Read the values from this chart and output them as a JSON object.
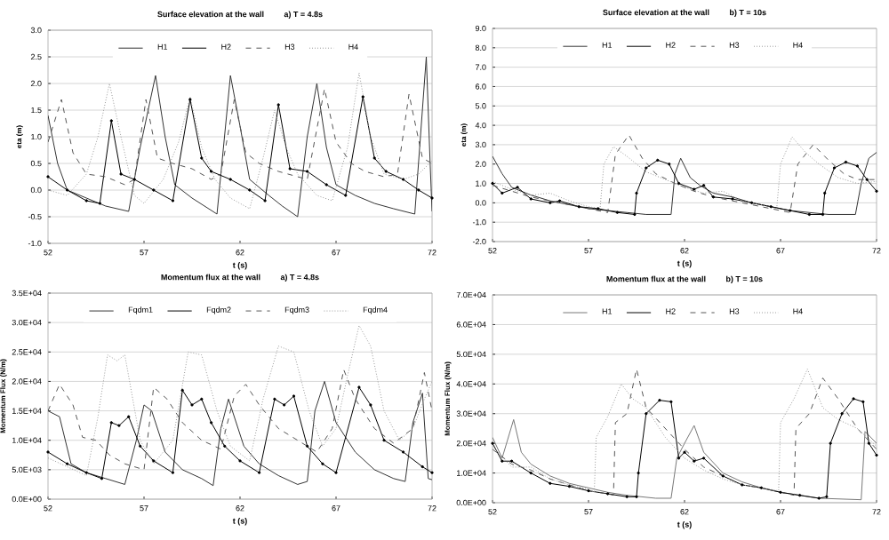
{
  "chart_data": [
    {
      "type": "line",
      "title": "Surface elevation at the wall",
      "subtitle": "a) T = 4.8s",
      "xlabel": "t (s)",
      "ylabel": "eta (m)",
      "xlim": [
        52,
        72
      ],
      "xticks": [
        52,
        57,
        62,
        67,
        72
      ],
      "ylim": [
        -1.0,
        3.0
      ],
      "yticks": [
        {
          "value": -1.0,
          "label": "-1.0"
        },
        {
          "value": -0.5,
          "label": "-0.5"
        },
        {
          "value": 0.0,
          "label": "0.0"
        },
        {
          "value": 0.5,
          "label": "0.5"
        },
        {
          "value": 1.0,
          "label": "1.0"
        },
        {
          "value": 1.5,
          "label": "1.5"
        },
        {
          "value": 2.0,
          "label": "2.0"
        },
        {
          "value": 2.5,
          "label": "2.5"
        },
        {
          "value": 3.0,
          "label": "3.0"
        }
      ],
      "grid": "y",
      "legend": "top",
      "series": [
        {
          "name": "H1",
          "color": "#333333",
          "line_style": "solid",
          "x": [
            52,
            52.5,
            53,
            54,
            55,
            56.2,
            56.8,
            57.6,
            58.1,
            58.6,
            59.5,
            60.8,
            61.5,
            62,
            62.5,
            63.5,
            64.2,
            65,
            65.5,
            66,
            66.5,
            67,
            68,
            69,
            70,
            71.1,
            71.7,
            71.9,
            72
          ],
          "values": [
            1.4,
            0.5,
            0,
            -0.15,
            -0.3,
            -0.4,
            0.8,
            2.15,
            1,
            0.1,
            -0.15,
            -0.45,
            2.15,
            1.2,
            0.2,
            -0.1,
            -0.3,
            -0.5,
            1,
            2,
            0.8,
            0.1,
            -0.1,
            -0.25,
            -0.35,
            -0.45,
            2.5,
            0.5,
            -0.4
          ]
        },
        {
          "name": "H2",
          "color": "#000000",
          "line_style": "solid",
          "marker": "circle",
          "x": [
            52,
            53,
            54,
            54.7,
            55.3,
            55.8,
            56.5,
            57.5,
            58.5,
            59.4,
            60,
            60.5,
            61.5,
            62.5,
            63.3,
            64,
            64.6,
            65.5,
            66.5,
            67.5,
            68.4,
            69,
            69.6,
            70.5,
            71.3,
            72
          ],
          "values": [
            0.25,
            0,
            -0.2,
            -0.25,
            1.3,
            0.3,
            0.2,
            0,
            -0.2,
            1.7,
            0.6,
            0.35,
            0.2,
            0,
            -0.2,
            1.6,
            0.4,
            0.35,
            0.1,
            -0.1,
            1.75,
            0.6,
            0.35,
            0.2,
            0,
            -0.15
          ]
        },
        {
          "name": "H3",
          "color": "#555555",
          "line_style": "dashed",
          "x": [
            52,
            52.7,
            53.3,
            54,
            55,
            56,
            56.5,
            57.1,
            57.7,
            58.5,
            59.5,
            60.5,
            61,
            61.7,
            62.3,
            63,
            64,
            65.5,
            66.4,
            67,
            67.8,
            68.5,
            69.5,
            70.2,
            70.8,
            71.5,
            72
          ],
          "values": [
            0.9,
            1.7,
            0.7,
            0.3,
            0.25,
            0.1,
            0.2,
            1.7,
            0.6,
            0.5,
            0.4,
            0.2,
            0.3,
            1.7,
            0.7,
            0.5,
            0.35,
            0.2,
            1.9,
            0.9,
            0.5,
            0.35,
            0.25,
            0.3,
            1.8,
            0.6,
            0.5
          ]
        },
        {
          "name": "H4",
          "color": "#999999",
          "line_style": "dotted",
          "x": [
            52,
            53,
            54,
            54.6,
            55.2,
            55.8,
            56.5,
            57,
            58,
            58.8,
            59.4,
            60,
            60.7,
            61.5,
            62.5,
            63.2,
            63.8,
            64.4,
            65,
            66,
            66.8,
            67.6,
            68.2,
            68.8,
            69.5,
            70.5,
            71.3,
            72
          ],
          "values": [
            0,
            -0.1,
            0.3,
            1,
            2,
            1,
            -0.1,
            -0.25,
            0.2,
            0.9,
            1.75,
            0.8,
            0.2,
            -0.15,
            -0.35,
            0.6,
            1.5,
            0.8,
            0.3,
            -0.1,
            -0.2,
            0.8,
            2.2,
            1,
            0.3,
            0.2,
            0.3,
            0.55
          ]
        }
      ]
    },
    {
      "type": "line",
      "title": "Surface elevation at the wall",
      "subtitle": "b) T = 10s",
      "xlabel": "t (s)",
      "ylabel": "eta (m)",
      "xlim": [
        52,
        72
      ],
      "xticks": [
        52,
        57,
        62,
        67,
        72
      ],
      "ylim": [
        -2.0,
        9.0
      ],
      "yticks": [
        {
          "value": -2.0,
          "label": "-2.0"
        },
        {
          "value": -1.0,
          "label": "-1.0"
        },
        {
          "value": 0.0,
          "label": "0.0"
        },
        {
          "value": 1.0,
          "label": "1.0"
        },
        {
          "value": 2.0,
          "label": "2.0"
        },
        {
          "value": 3.0,
          "label": "3.0"
        },
        {
          "value": 4.0,
          "label": "4.0"
        },
        {
          "value": 5.0,
          "label": "5.0"
        },
        {
          "value": 6.0,
          "label": "6.0"
        },
        {
          "value": 7.0,
          "label": "7.0"
        },
        {
          "value": 8.0,
          "label": "8.0"
        },
        {
          "value": 9.0,
          "label": "9.0"
        }
      ],
      "grid": "y",
      "legend": "top",
      "series": [
        {
          "name": "H1",
          "color": "#333333",
          "line_style": "solid",
          "x": [
            52,
            52.5,
            53,
            54,
            55,
            56,
            57,
            58,
            59,
            60,
            61.3,
            61.5,
            61.8,
            62.3,
            62.8,
            63.5,
            64.5,
            65.5,
            66.5,
            67.5,
            68.5,
            69.5,
            70.9,
            71.2,
            71.6,
            72
          ],
          "values": [
            2.4,
            1.5,
            0.8,
            0.4,
            0.1,
            -0.1,
            -0.3,
            -0.4,
            -0.5,
            -0.6,
            -0.6,
            1.5,
            2.3,
            1.3,
            0.9,
            0.5,
            0.3,
            0,
            -0.2,
            -0.4,
            -0.5,
            -0.6,
            -0.6,
            1,
            2.3,
            2.6
          ]
        },
        {
          "name": "H2",
          "color": "#000000",
          "line_style": "solid",
          "marker": "circle",
          "x": [
            52,
            52.5,
            53.3,
            54,
            55,
            55.5,
            56.5,
            57.5,
            58.5,
            59.4,
            59.5,
            60,
            60.6,
            61.2,
            61.7,
            62.5,
            63,
            63.5,
            64.5,
            65.5,
            66.5,
            67.5,
            68.5,
            69.2,
            69.3,
            69.8,
            70.4,
            71,
            71.5,
            72
          ],
          "values": [
            1,
            0.5,
            0.8,
            0.2,
            0,
            0.1,
            -0.2,
            -0.3,
            -0.5,
            -0.6,
            0.5,
            1.8,
            2.2,
            2,
            1,
            0.7,
            0.9,
            0.3,
            0.2,
            0,
            -0.2,
            -0.4,
            -0.6,
            -0.6,
            0.5,
            1.8,
            2.1,
            1.9,
            1.2,
            0.6
          ]
        },
        {
          "name": "H3",
          "color": "#555555",
          "line_style": "dashed",
          "x": [
            52,
            53,
            54,
            55,
            56,
            57,
            58,
            58.4,
            59.1,
            59.8,
            60.5,
            61.5,
            62.5,
            63.5,
            64.5,
            65.5,
            66.5,
            67.5,
            67.9,
            68.7,
            69.5,
            70.3,
            71,
            72
          ],
          "values": [
            0.9,
            0.6,
            0.3,
            0.1,
            -0.1,
            -0.3,
            -0.5,
            2.5,
            3.5,
            2.3,
            1.5,
            1,
            0.6,
            0.3,
            0.1,
            -0.1,
            -0.3,
            -0.5,
            2,
            3,
            2.2,
            1.5,
            1.2,
            1.2
          ]
        },
        {
          "name": "H4",
          "color": "#999999",
          "line_style": "dotted",
          "x": [
            52,
            53,
            54,
            55,
            56,
            57,
            57.6,
            57.8,
            58.3,
            59,
            60,
            61,
            62,
            63,
            64,
            65,
            66,
            66.8,
            67,
            67.6,
            68.3,
            69,
            70,
            71,
            72
          ],
          "values": [
            1.1,
            0.7,
            0.4,
            0.5,
            0.1,
            -0.2,
            -0.3,
            2,
            2.9,
            2.4,
            1.6,
            1.2,
            0.8,
            0.5,
            0.6,
            0.1,
            -0.1,
            -0.3,
            2,
            3.4,
            2.6,
            2,
            1.3,
            1,
            1.1
          ]
        }
      ]
    },
    {
      "type": "line",
      "title": "Momentum flux at the wall",
      "subtitle": "a) T = 4.8s",
      "xlabel": "t (s)",
      "ylabel": "Momentum Flux (N/m)",
      "xlim": [
        52,
        72
      ],
      "xticks": [
        52,
        57,
        62,
        67,
        72
      ],
      "ylim": [
        0,
        35000
      ],
      "yticks": [
        {
          "value": 0,
          "label": "0.0E+00"
        },
        {
          "value": 5000,
          "label": "5.0E+03"
        },
        {
          "value": 10000,
          "label": "1.0E+04"
        },
        {
          "value": 15000,
          "label": "1.5E+04"
        },
        {
          "value": 20000,
          "label": "2.0E+04"
        },
        {
          "value": 25000,
          "label": "2.5E+04"
        },
        {
          "value": 30000,
          "label": "3.0E+04"
        },
        {
          "value": 35000,
          "label": "3.5E+04"
        }
      ],
      "grid": "y",
      "legend": "top",
      "series": [
        {
          "name": "Fqdm1",
          "color": "#333333",
          "line_style": "solid",
          "x": [
            52,
            52.6,
            53.2,
            54,
            55,
            56,
            56.6,
            57,
            57.4,
            58.1,
            59,
            60,
            60.6,
            61,
            61.4,
            62.2,
            63,
            64,
            65,
            65.5,
            65.9,
            66.4,
            67,
            68,
            69,
            70,
            70.6,
            71,
            71.5,
            71.8,
            72
          ],
          "values": [
            15000,
            14000,
            6000,
            4500,
            3500,
            2500,
            10000,
            16000,
            15000,
            8000,
            5000,
            3500,
            2300,
            12000,
            17000,
            9000,
            6000,
            4000,
            2500,
            3000,
            15000,
            20000,
            13000,
            8000,
            5000,
            3500,
            3000,
            13000,
            18000,
            3500,
            3300
          ]
        },
        {
          "name": "Fqdm2",
          "color": "#000000",
          "line_style": "solid",
          "marker": "circle",
          "x": [
            52,
            53,
            54,
            54.8,
            55.3,
            55.7,
            56.2,
            56.8,
            57.5,
            58.5,
            59,
            59.5,
            60,
            60.5,
            61.2,
            62,
            63,
            63.8,
            64.3,
            64.8,
            65.5,
            66.3,
            67,
            68.2,
            68.8,
            69.5,
            70.5,
            71.5,
            72
          ],
          "values": [
            8000,
            6000,
            4500,
            3500,
            13000,
            12500,
            14000,
            9000,
            6500,
            4500,
            18500,
            16000,
            17000,
            13000,
            9000,
            6500,
            4500,
            17000,
            16000,
            17500,
            9000,
            6000,
            4500,
            19000,
            16000,
            10000,
            8000,
            5500,
            4500
          ]
        },
        {
          "name": "Fqdm3",
          "color": "#555555",
          "line_style": "dashed",
          "x": [
            52,
            52.6,
            53.3,
            53.8,
            54.5,
            55.2,
            56,
            57,
            57.5,
            58.2,
            59,
            60,
            61,
            61.7,
            62.3,
            63,
            64,
            65,
            66,
            66.8,
            67.4,
            68,
            69,
            70,
            71,
            71.6,
            72
          ],
          "values": [
            15000,
            19500,
            16000,
            10500,
            10000,
            7500,
            6000,
            5000,
            19000,
            17000,
            13000,
            10000,
            8500,
            17500,
            19500,
            16000,
            12000,
            10000,
            8000,
            12000,
            22000,
            17000,
            12000,
            9500,
            12000,
            21500,
            15000
          ]
        },
        {
          "name": "Fqdm4",
          "color": "#999999",
          "line_style": "dotted",
          "x": [
            52,
            53,
            54,
            54.6,
            55.1,
            55.6,
            56,
            56.8,
            57.5,
            58.5,
            59.3,
            60,
            60.8,
            61.5,
            62.5,
            63.2,
            64,
            64.8,
            65.6,
            66.3,
            67,
            67.6,
            68.2,
            68.8,
            69.5,
            70.3,
            71,
            71.6,
            72
          ],
          "values": [
            7000,
            5500,
            4000,
            14000,
            24500,
            23500,
            24500,
            10000,
            6000,
            10000,
            25000,
            24500,
            15000,
            9000,
            6500,
            17000,
            26000,
            25000,
            15000,
            9000,
            12000,
            21000,
            29500,
            26000,
            15000,
            10000,
            12000,
            17000,
            20000
          ]
        }
      ]
    },
    {
      "type": "line",
      "title": "Momentum flux at the wall",
      "subtitle": "b) T = 10s",
      "xlabel": "t (s)",
      "ylabel": "Momentum Flux (N/m)",
      "xlim": [
        52,
        72
      ],
      "xticks": [
        52,
        57,
        62,
        67,
        72
      ],
      "ylim": [
        0,
        70000
      ],
      "yticks": [
        {
          "value": 0,
          "label": "0.0E+00"
        },
        {
          "value": 10000,
          "label": "1.0E+04"
        },
        {
          "value": 20000,
          "label": "2.0E+04"
        },
        {
          "value": 30000,
          "label": "3.0E+04"
        },
        {
          "value": 40000,
          "label": "4.0E+04"
        },
        {
          "value": 50000,
          "label": "5.0E+04"
        },
        {
          "value": 60000,
          "label": "6.0E+04"
        },
        {
          "value": 70000,
          "label": "7.0E+04"
        }
      ],
      "grid": "y",
      "legend": "top",
      "series": [
        {
          "name": "H1",
          "color": "#777777",
          "line_style": "solid",
          "x": [
            52,
            52.5,
            53.1,
            53.5,
            54,
            55,
            56,
            57,
            58,
            59,
            60.5,
            61.3,
            61.6,
            62,
            62.5,
            63,
            64,
            65,
            66,
            67,
            68,
            69,
            71.2,
            71.4,
            72
          ],
          "values": [
            22000,
            15000,
            28000,
            17000,
            13000,
            9000,
            6500,
            5000,
            3500,
            2500,
            1500,
            1500,
            15000,
            20000,
            26000,
            17000,
            10000,
            7000,
            5000,
            3500,
            2500,
            1500,
            1000,
            24000,
            20000
          ]
        },
        {
          "name": "H2",
          "color": "#000000",
          "line_style": "solid",
          "marker": "circle",
          "x": [
            52,
            52.5,
            53,
            54,
            55,
            56,
            57,
            58,
            59,
            59.5,
            59.6,
            60,
            60.7,
            61.3,
            61.7,
            62,
            62.5,
            63,
            64,
            65,
            66,
            67,
            68,
            69,
            69.4,
            69.6,
            70.2,
            70.8,
            71.3,
            71.6,
            72
          ],
          "values": [
            20000,
            14000,
            14000,
            10000,
            6500,
            5500,
            4000,
            3000,
            2000,
            2000,
            10000,
            30000,
            34500,
            34000,
            15000,
            17000,
            14000,
            15000,
            9000,
            6000,
            5000,
            3500,
            2500,
            1500,
            2000,
            20000,
            30000,
            35000,
            34000,
            20000,
            16000
          ]
        },
        {
          "name": "H3",
          "color": "#555555",
          "line_style": "dashed",
          "x": [
            52,
            53,
            54,
            55,
            56,
            57,
            58,
            58.3,
            58.4,
            59,
            59.5,
            60,
            61,
            62,
            63,
            64,
            65,
            66,
            67,
            67.7,
            67.8,
            68.5,
            69.2,
            70,
            71,
            72
          ],
          "values": [
            18000,
            13000,
            11000,
            8000,
            6000,
            4000,
            3000,
            2500,
            27000,
            30000,
            45000,
            32000,
            25000,
            18000,
            12000,
            9000,
            6000,
            5000,
            3500,
            2500,
            25000,
            30000,
            42000,
            35000,
            25000,
            18000
          ]
        },
        {
          "name": "H4",
          "color": "#999999",
          "line_style": "dotted",
          "x": [
            52,
            53,
            54,
            55,
            56,
            57,
            57.3,
            57.4,
            58,
            58.7,
            59.3,
            60,
            61,
            62,
            63,
            64,
            65,
            66,
            66.9,
            67,
            67.7,
            68.4,
            69.2,
            70,
            71,
            72
          ],
          "values": [
            19000,
            12000,
            12000,
            8000,
            6000,
            4500,
            3500,
            22000,
            29000,
            40000,
            35000,
            32000,
            22000,
            15000,
            11000,
            8000,
            6000,
            5000,
            4000,
            27000,
            35000,
            45000,
            32000,
            28000,
            25000,
            19000
          ]
        }
      ]
    }
  ]
}
